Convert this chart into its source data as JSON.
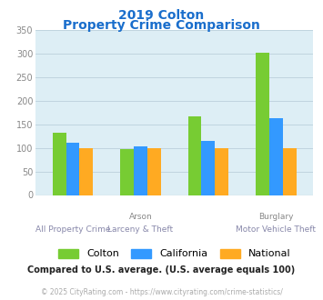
{
  "title_line1": "2019 Colton",
  "title_line2": "Property Crime Comparison",
  "groups": {
    "Colton": [
      132,
      98,
      167,
      302
    ],
    "California": [
      110,
      103,
      114,
      162
    ],
    "National": [
      100,
      100,
      100,
      100
    ]
  },
  "colors": {
    "Colton": "#77cc33",
    "California": "#3399ff",
    "National": "#ffaa22"
  },
  "ylim": [
    0,
    350
  ],
  "yticks": [
    0,
    50,
    100,
    150,
    200,
    250,
    300,
    350
  ],
  "title_color": "#1a6ecc",
  "bg_color": "#ddeef5",
  "grid_color": "#c0d4df",
  "note_text": "Compared to U.S. average. (U.S. average equals 100)",
  "footer_text": "© 2025 CityRating.com - https://www.cityrating.com/crime-statistics/",
  "note_color": "#222222",
  "footer_color": "#aaaaaa",
  "footer_url_color": "#3399ff",
  "x_top_labels": [
    "",
    "Arson",
    "",
    "Burglary"
  ],
  "x_bot_labels": [
    "All Property Crime",
    "Larceny & Theft",
    "",
    "Motor Vehicle Theft"
  ]
}
